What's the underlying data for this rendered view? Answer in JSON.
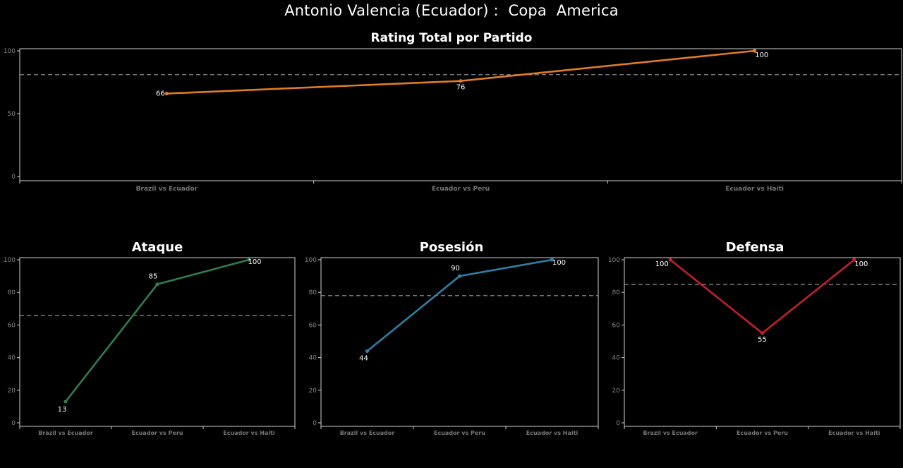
{
  "title": "Antonio Valencia (Ecuador) :  Copa  America",
  "charts": [
    {
      "id": "total",
      "type": "line",
      "title": "Rating Total por Partido",
      "categories": [
        "Brazil vs Ecuador",
        "Ecuador vs Peru",
        "Ecuador vs Haiti"
      ],
      "values": [
        66,
        76,
        100
      ],
      "value_labels": [
        "66",
        "76",
        "100"
      ],
      "reference_line": 81,
      "ylim": [
        0,
        100
      ],
      "yticks": [
        0,
        50,
        100
      ],
      "ytick_labels": [
        "0",
        "50",
        "100"
      ],
      "color": "#e07b27"
    },
    {
      "id": "ataque",
      "type": "line",
      "title": "Ataque",
      "categories": [
        "Brazil vs Ecuador",
        "Ecuador vs Peru",
        "Ecuador vs Haiti"
      ],
      "values": [
        13,
        85,
        100
      ],
      "value_labels": [
        "13",
        "85",
        "100"
      ],
      "reference_line": 66,
      "ylim": [
        0,
        100
      ],
      "yticks": [
        0,
        20,
        40,
        60,
        80,
        100
      ],
      "ytick_labels": [
        "0",
        "20",
        "40",
        "60",
        "80",
        "100"
      ],
      "color": "#2e7d4f"
    },
    {
      "id": "posesion",
      "type": "line",
      "title": "Posesión",
      "categories": [
        "Brazil vs Ecuador",
        "Ecuador vs Peru",
        "Ecuador vs Haiti"
      ],
      "values": [
        44,
        90,
        100
      ],
      "value_labels": [
        "44",
        "90",
        "100"
      ],
      "reference_line": 78,
      "ylim": [
        0,
        100
      ],
      "yticks": [
        0,
        20,
        40,
        60,
        80,
        100
      ],
      "ytick_labels": [
        "0",
        "20",
        "40",
        "60",
        "80",
        "100"
      ],
      "color": "#2f7fa6"
    },
    {
      "id": "defensa",
      "type": "line",
      "title": "Defensa",
      "categories": [
        "Brazil vs Ecuador",
        "Ecuador vs Peru",
        "Ecuador vs Haiti"
      ],
      "values": [
        100,
        55,
        100
      ],
      "value_labels": [
        "100",
        "55",
        "100"
      ],
      "reference_line": 85,
      "ylim": [
        0,
        100
      ],
      "yticks": [
        0,
        20,
        40,
        60,
        80,
        100
      ],
      "ytick_labels": [
        "0",
        "20",
        "40",
        "60",
        "80",
        "100"
      ],
      "color": "#c41e2b"
    }
  ],
  "chart_data": [
    {
      "type": "line",
      "title": "Rating Total por Partido",
      "categories": [
        "Brazil vs Ecuador",
        "Ecuador vs Peru",
        "Ecuador vs Haiti"
      ],
      "values": [
        66,
        76,
        100
      ],
      "reference_line": 81,
      "ylim": [
        0,
        100
      ]
    },
    {
      "type": "line",
      "title": "Ataque",
      "categories": [
        "Brazil vs Ecuador",
        "Ecuador vs Peru",
        "Ecuador vs Haiti"
      ],
      "values": [
        13,
        85,
        100
      ],
      "reference_line": 66,
      "ylim": [
        0,
        100
      ]
    },
    {
      "type": "line",
      "title": "Posesión",
      "categories": [
        "Brazil vs Ecuador",
        "Ecuador vs Peru",
        "Ecuador vs Haiti"
      ],
      "values": [
        44,
        90,
        100
      ],
      "reference_line": 78,
      "ylim": [
        0,
        100
      ]
    },
    {
      "type": "line",
      "title": "Defensa",
      "categories": [
        "Brazil vs Ecuador",
        "Ecuador vs Peru",
        "Ecuador vs Haiti"
      ],
      "values": [
        100,
        55,
        100
      ],
      "reference_line": 85,
      "ylim": [
        0,
        100
      ]
    }
  ]
}
